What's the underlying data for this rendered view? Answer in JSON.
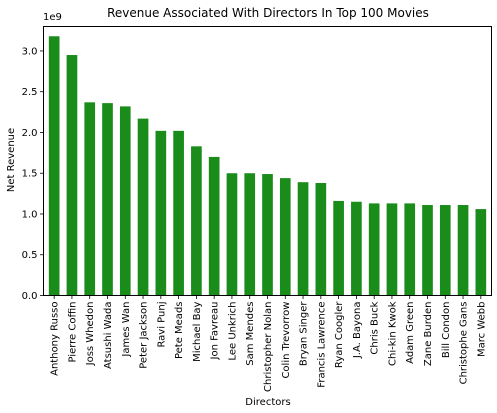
{
  "chart_data": {
    "type": "bar",
    "title": "Revenue Associated With Directors In Top 100 Movies",
    "xlabel": "Directors",
    "ylabel": "Net Revenue",
    "offset_text": "1e9",
    "ylim": [
      0,
      3.3
    ],
    "yticks": [
      0.0,
      0.5,
      1.0,
      1.5,
      2.0,
      2.5,
      3.0
    ],
    "ytick_labels": [
      "0.0",
      "0.5",
      "1.0",
      "1.5",
      "2.0",
      "2.5",
      "3.0"
    ],
    "bar_color": "#1a8c1a",
    "grid": false,
    "categories": [
      "Anthony Russo",
      "Pierre Coffin",
      "Joss Whedon",
      "Atsushi Wada",
      "James Wan",
      "Peter Jackson",
      "Ravi Punj",
      "Pete Meads",
      "Michael Bay",
      "Jon Favreau",
      "Lee Unkrich",
      "Sam Mendes",
      "Christopher Nolan",
      "Colin Trevorrow",
      "Bryan Singer",
      "Francis Lawrence",
      "Ryan Coogler",
      "J.A. Bayona",
      "Chris Buck",
      "Chi-kin Kwok",
      "Adam Green",
      "Zane Burden",
      "Bill Condon",
      "Christophe Gans",
      "Marc Webb"
    ],
    "values": [
      3.18,
      2.95,
      2.37,
      2.36,
      2.32,
      2.17,
      2.02,
      2.02,
      1.83,
      1.7,
      1.5,
      1.5,
      1.49,
      1.44,
      1.39,
      1.38,
      1.16,
      1.15,
      1.13,
      1.13,
      1.13,
      1.11,
      1.11,
      1.11,
      1.06
    ]
  }
}
